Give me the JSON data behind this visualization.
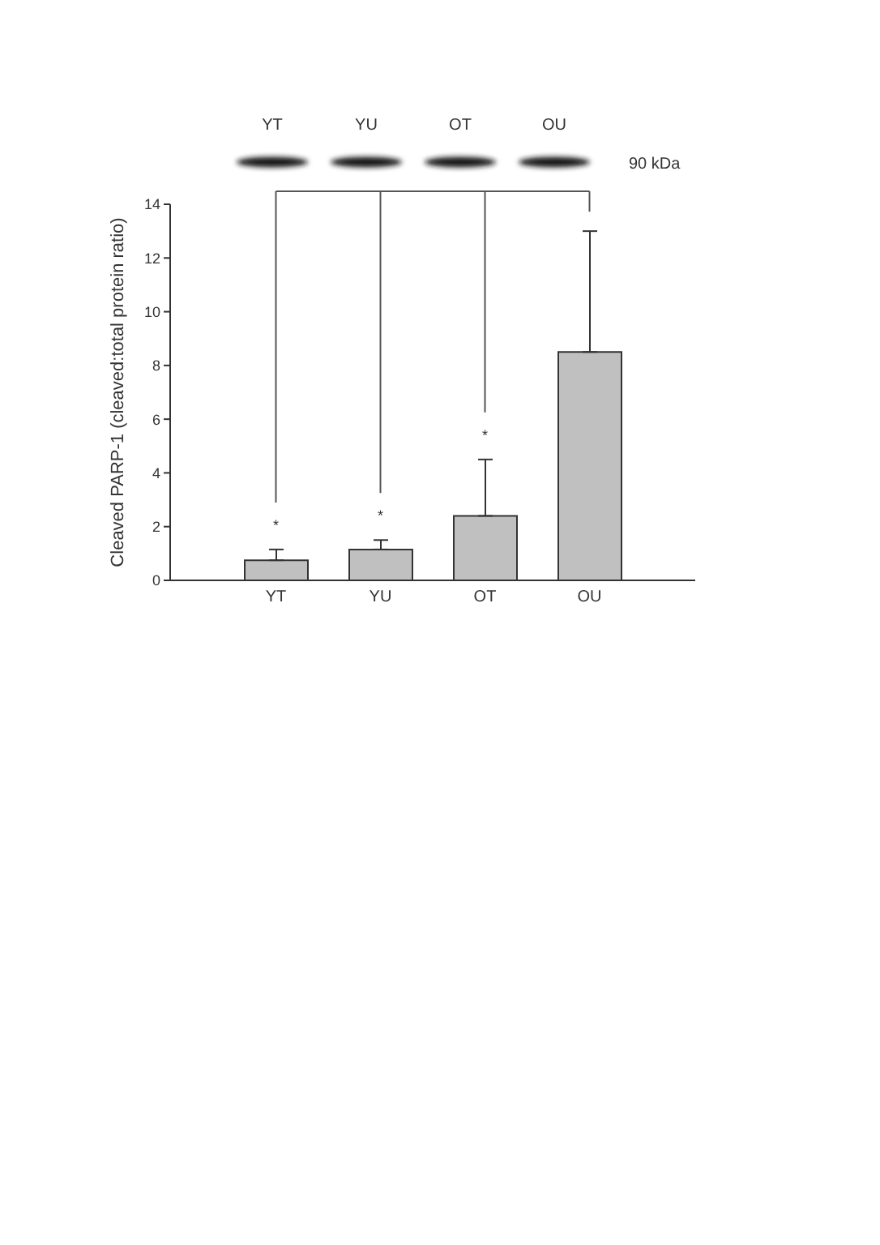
{
  "chart_data": {
    "type": "bar",
    "categories": [
      "YT",
      "YU",
      "OT",
      "OU"
    ],
    "values": [
      0.75,
      1.15,
      2.4,
      8.5
    ],
    "errors": [
      [
        0.75,
        1.15
      ],
      [
        1.15,
        1.5
      ],
      [
        2.4,
        4.5
      ],
      [
        8.5,
        13
      ]
    ],
    "color": "#c0c0c0",
    "ylabel": "Cleaved PARP-1 (cleaved:total protein ratio)",
    "ylim": [
      0,
      14
    ],
    "yticks": [
      0,
      2,
      4,
      6,
      8,
      10,
      12,
      14
    ],
    "annotations": [
      "YT",
      "YU",
      "OT",
      "OU",
      "90 kDa",
      "*",
      "*",
      "*"
    ]
  }
}
